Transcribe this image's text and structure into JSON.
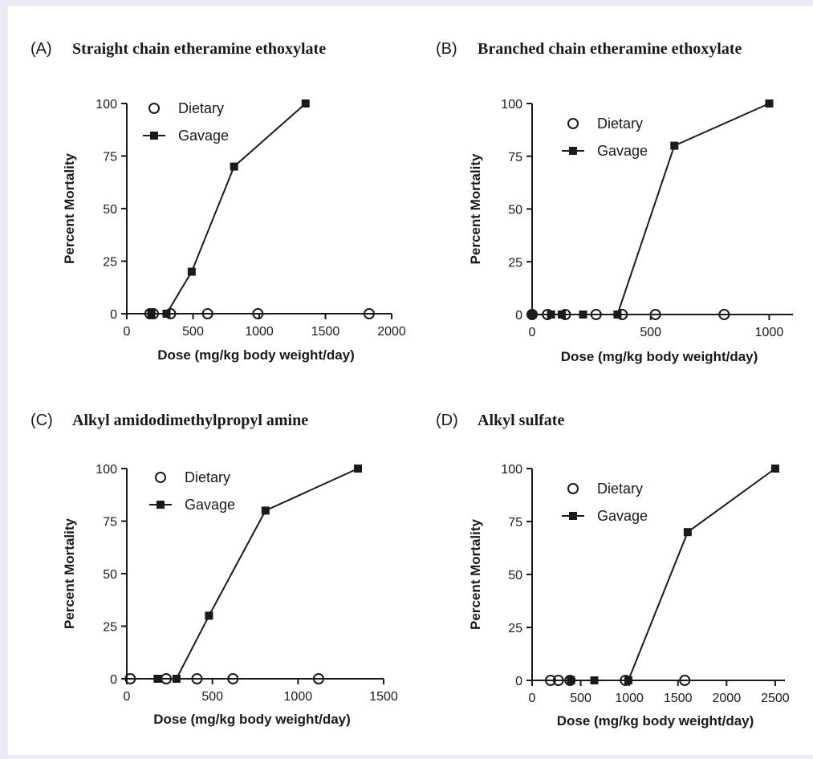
{
  "chart_data": [
    {
      "type": "scatter",
      "panel_label": "(A)",
      "title": "Straight chain etheramine ethoxylate",
      "xlabel": "Dose (mg/kg body weight/day)",
      "ylabel": "Percent Mortality",
      "xlim": [
        0,
        2000
      ],
      "ylim": [
        0,
        100
      ],
      "xticks": [
        "0",
        "500",
        "1000",
        "1500",
        "2000"
      ],
      "yticks": [
        "0",
        "25",
        "50",
        "75",
        "100"
      ],
      "legend_position": "top-left",
      "series": [
        {
          "name": "Dietary",
          "marker": "open-circle",
          "line": false,
          "x": [
            175,
            200,
            330,
            610,
            990,
            1830
          ],
          "y": [
            0,
            0,
            0,
            0,
            0,
            0
          ]
        },
        {
          "name": "Gavage",
          "marker": "filled-square",
          "line": true,
          "x": [
            185,
            300,
            490,
            810,
            1350
          ],
          "y": [
            0,
            0,
            20,
            70,
            100
          ]
        }
      ]
    },
    {
      "type": "scatter",
      "panel_label": "(B)",
      "title": "Branched chain etheramine ethoxylate",
      "xlabel": "Dose (mg/kg body weight/day)",
      "ylabel": "Percent Mortality",
      "xlim": [
        0,
        1100
      ],
      "ylim": [
        0,
        100
      ],
      "xticks": [
        "0",
        "500",
        "1000"
      ],
      "yticks": [
        "0",
        "25",
        "50",
        "75",
        "100"
      ],
      "legend_position": "top-left",
      "series": [
        {
          "name": "Dietary",
          "marker": "open-circle",
          "line": false,
          "x": [
            0,
            65,
            140,
            270,
            380,
            520,
            810
          ],
          "y": [
            0,
            0,
            0,
            0,
            0,
            0,
            0
          ]
        },
        {
          "name": "Gavage",
          "marker": "filled-square",
          "line": true,
          "x": [
            0,
            80,
            125,
            215,
            360,
            600,
            1000
          ],
          "y": [
            0,
            0,
            0,
            0,
            0,
            80,
            100
          ]
        }
      ]
    },
    {
      "type": "scatter",
      "panel_label": "(C)",
      "title": "Alkyl amidodimethylpropyl amine",
      "xlabel": "Dose (mg/kg body weight/day)",
      "ylabel": "Percent Mortality",
      "xlim": [
        0,
        1500
      ],
      "ylim": [
        0,
        100
      ],
      "xticks": [
        "0",
        "500",
        "1000",
        "1500"
      ],
      "yticks": [
        "0",
        "25",
        "50",
        "75",
        "100"
      ],
      "legend_position": "top-left",
      "series": [
        {
          "name": "Dietary",
          "marker": "open-circle",
          "line": false,
          "x": [
            20,
            230,
            410,
            620,
            1120
          ],
          "y": [
            0,
            0,
            0,
            0,
            0
          ]
        },
        {
          "name": "Gavage",
          "marker": "filled-square",
          "line": true,
          "x": [
            180,
            290,
            480,
            810,
            1350
          ],
          "y": [
            0,
            0,
            30,
            80,
            100
          ]
        }
      ]
    },
    {
      "type": "scatter",
      "panel_label": "(D)",
      "title": "Alkyl sulfate",
      "xlabel": "Dose (mg/kg body weight/day)",
      "ylabel": "Percent Mortality",
      "xlim": [
        0,
        2600
      ],
      "ylim": [
        0,
        100
      ],
      "xticks": [
        "0",
        "500",
        "1000",
        "1500",
        "2000",
        "2500"
      ],
      "yticks": [
        "0",
        "25",
        "50",
        "75",
        "100"
      ],
      "legend_position": "top-left",
      "series": [
        {
          "name": "Dietary",
          "marker": "open-circle",
          "line": false,
          "x": [
            190,
            270,
            390,
            960,
            1570
          ],
          "y": [
            0,
            0,
            0,
            0,
            0
          ]
        },
        {
          "name": "Gavage",
          "marker": "filled-square",
          "line": true,
          "x": [
            400,
            640,
            990,
            1600,
            2500
          ],
          "y": [
            0,
            0,
            0,
            70,
            100
          ]
        }
      ]
    }
  ]
}
